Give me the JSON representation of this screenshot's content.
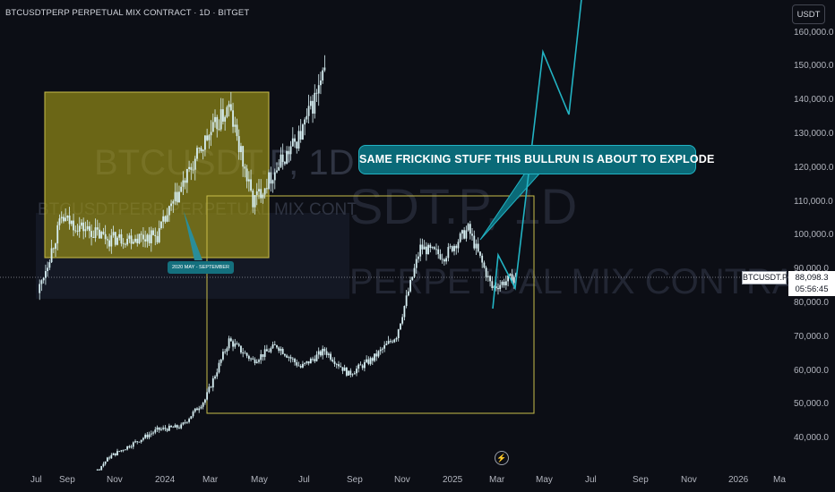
{
  "header": {
    "symbol_title": "BTCUSDTPERP PERPETUAL MIX CONTRACT · 1D · BITGET",
    "currency_button": "USDT"
  },
  "watermark": {
    "line1_a": "BTCUSDT.P, 1D",
    "line2_a": "BTCUSDTPERP PERPETUAL MIX CONT",
    "line1_b": "SDT.P, 1D",
    "line2_b": "PERPETUAL MIX CONTRACT"
  },
  "annotations": {
    "callout_text": "SAME FRICKING STUFF THIS BULLRUN IS ABOUT TO EXPLODE",
    "yellow_box_label": "2020 MAY - SEPTEMBER",
    "symbol_tag": "BTCUSDT.P",
    "last_price": "88,098.3",
    "countdown": "05:56:45"
  },
  "price_axis": {
    "labels": [
      "160,000.0",
      "150,000.0",
      "140,000.0",
      "130,000.0",
      "120,000.0",
      "110,000.0",
      "100,000.0",
      "90,000.0",
      "80,000.0",
      "70,000.0",
      "60,000.0",
      "50,000.0",
      "40,000.0"
    ]
  },
  "time_axis": {
    "labels": [
      "Jul",
      "Sep",
      "Nov",
      "2024",
      "Mar",
      "May",
      "Jul",
      "Sep",
      "Nov",
      "2025",
      "Mar",
      "May",
      "Jul",
      "Sep",
      "Nov",
      "2026",
      "Ma"
    ]
  },
  "chart_data": {
    "type": "candlestick",
    "symbol": "BTCUSDT.P",
    "timeframe": "1D",
    "x_start": "2023-07",
    "ylim": [
      35000,
      165000
    ],
    "last_price": 88098.3,
    "main_series": {
      "name": "BTCUSDT.P",
      "approx_path": [
        {
          "x": "2023-07",
          "y": 29500
        },
        {
          "x": "2023-09",
          "y": 26500
        },
        {
          "x": "2023-10",
          "y": 34500
        },
        {
          "x": "2023-12",
          "y": 42500
        },
        {
          "x": "2024-01",
          "y": 43500
        },
        {
          "x": "2024-02",
          "y": 51500
        },
        {
          "x": "2024-03",
          "y": 69000
        },
        {
          "x": "2024-04",
          "y": 63000
        },
        {
          "x": "2024-05",
          "y": 67500
        },
        {
          "x": "2024-06",
          "y": 61000
        },
        {
          "x": "2024-07",
          "y": 66000
        },
        {
          "x": "2024-08",
          "y": 59000
        },
        {
          "x": "2024-09",
          "y": 63500
        },
        {
          "x": "2024-10",
          "y": 70500
        },
        {
          "x": "2024-11",
          "y": 96500
        },
        {
          "x": "2024-12",
          "y": 94000
        },
        {
          "x": "2025-01",
          "y": 102000
        },
        {
          "x": "2025-02",
          "y": 84500
        },
        {
          "x": "2025-03",
          "y": 88100
        }
      ]
    },
    "overlay_2020_series": {
      "approx_path": [
        {
          "x": "2023-07",
          "y": 83000
        },
        {
          "x": "2023-08",
          "y": 105000
        },
        {
          "x": "2023-10",
          "y": 99000
        },
        {
          "x": "2023-12",
          "y": 100000
        },
        {
          "x": "2024-02",
          "y": 128000
        },
        {
          "x": "2024-03",
          "y": 138000
        },
        {
          "x": "2024-04",
          "y": 110000
        },
        {
          "x": "2024-05",
          "y": 120000
        },
        {
          "x": "2024-06",
          "y": 130000
        },
        {
          "x": "2024-07",
          "y": 148000
        }
      ]
    },
    "projection_path": [
      {
        "x": "2025-03",
        "y": 97000
      },
      {
        "x": "2025-03",
        "y": 84500
      },
      {
        "x": "2025-05",
        "y": 155000
      },
      {
        "x": "2025-06",
        "y": 136000
      },
      {
        "x": "2025-07",
        "y": 165000
      }
    ]
  },
  "colors": {
    "background": "#0c0e15",
    "candle": "#d8f0f4",
    "accent": "#22b3c3",
    "yellow_box": "#9a9018",
    "yellow_border": "#c9bd4a"
  }
}
